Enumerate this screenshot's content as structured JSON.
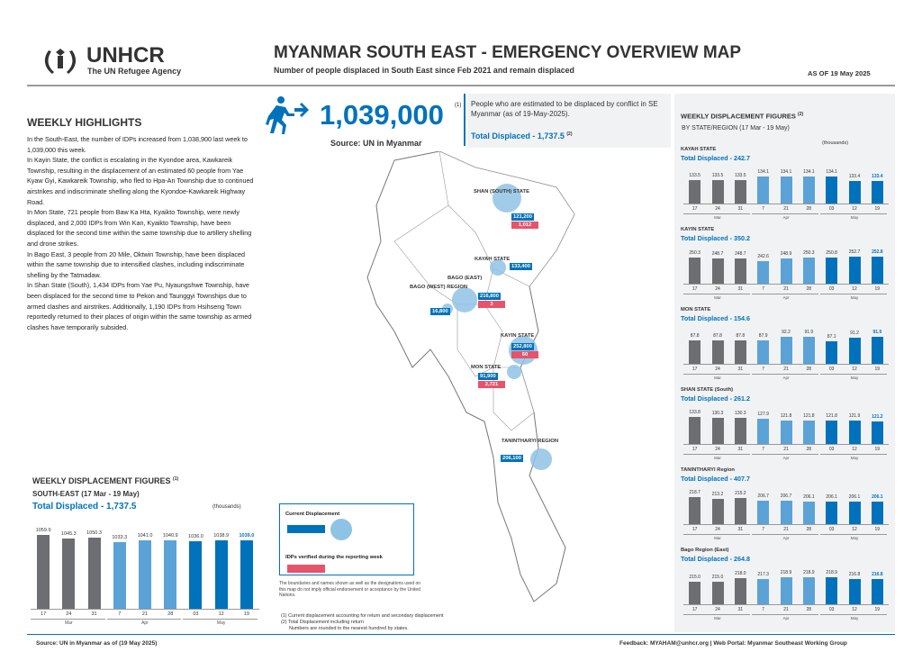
{
  "header": {
    "org": "UNHCR",
    "org_sub": "The UN Refugee Agency",
    "title": "MYANMAR SOUTH EAST - EMERGENCY OVERVIEW MAP",
    "subtitle": "Number of people displaced in South East since Feb 2021 and remain displaced",
    "as_of": "AS OF 19 May 2025"
  },
  "highlights": {
    "heading": "WEEKLY HIGHLIGHTS",
    "paragraphs": [
      "In the South-East, the number of IDPs increased from 1,038,900 last week to 1,039,000 this week.",
      "In Kayin State, the conflict is escalating in the Kyondoe area, Kawkareik Township, resulting in the displacement of an estimated 60 people from Yae Kyaw Gyi, Kawkareik Township, who fled to Hpa-An Township due to continued airstrikes and indiscriminate shelling along the Kyondoe-Kawkareik Highway Road.",
      "In Mon State, 721 people from Baw Ka Hta, Kyaikto Township, were newly displaced, and 2,000 IDPs from Win Kan, Kyaikto Township, have been displaced for the second time within the same township due to artillery shelling and drone strikes.",
      "In Bago East, 3 people from 20 Mile, Oktwin Township, have been displaced within the same township due to intensified clashes, including indiscriminate shelling by the Tatmadaw.",
      "In Shan State (South), 1,434 IDPs from Yae Pu, Nyaungshwe Township, have been displaced for the second time to Pekon and Taunggyi Townships due to armed clashes and airstrikes. Additionally, 1,190 IDPs from Hsihseng Town reportedly returned to their places of origin within the same township as armed clashes have temporarily subsided."
    ]
  },
  "kpi": {
    "value": "1,039,000",
    "sup": "(1)",
    "source": "Source: UN in Myanmar",
    "desc": "People who are estimated to be displaced by conflict in SE Myanmar (as of 19-May-2025).",
    "total": "Total Displaced - 1,737.5",
    "total_sup": "(2)"
  },
  "map": {
    "regions": [
      {
        "name": "SHAN (SOUTH) STATE",
        "current": "121,200",
        "new": "1,012"
      },
      {
        "name": "KAYAH STATE",
        "current": "133,400",
        "new": ""
      },
      {
        "name": "BAGO (EAST)",
        "current": "216,800",
        "new": "3"
      },
      {
        "name": "BAGO (WEST) REGION",
        "current": "16,800",
        "new": ""
      },
      {
        "name": "KAYIN STATE",
        "current": "252,800",
        "new": "60"
      },
      {
        "name": "MON STATE",
        "current": "91,900",
        "new": "2,721"
      },
      {
        "name": "TANINTHARYI REGION",
        "current": "206,100",
        "new": ""
      }
    ],
    "legend_current": "Current Displacement",
    "legend_new": "IDPs verified during the reporting week",
    "disclaimer": "The boundaries and names shown as well as the designations used on this map do not imply official endorsement or acceptance by the United Nations."
  },
  "se_chart": {
    "heading": "WEEKLY DISPLACEMENT FIGURES",
    "heading_sup": "(1)",
    "sub": "SOUTH-EAST (17 Mar - 19 May)",
    "total": "Total Displaced - 1,737.5",
    "units": "(thousands)",
    "chart_data": {
      "type": "bar",
      "categories": [
        "17",
        "24",
        "31",
        "7",
        "21",
        "28",
        "03",
        "12",
        "19"
      ],
      "months": [
        "Mar",
        "Apr",
        "May"
      ],
      "values": [
        1059.9,
        1045.3,
        1050.3,
        1033.3,
        1041.0,
        1040.9,
        1036.0,
        1038.9,
        1039.0
      ],
      "value_labels": [
        "1059.9",
        "1045.3",
        "1050.3",
        "1033.3",
        "1041.0",
        "1040.9",
        "1036.0",
        "1038.9",
        "1039.0"
      ]
    }
  },
  "state_charts": {
    "heading": "WEEKLY DISPLACEMENT FIGURES",
    "heading_sup": "(2)",
    "sub": "BY STATE/REGION (17 Mar - 19 May)",
    "units": "(thousands)",
    "months": [
      "Mar",
      "Apr",
      "May"
    ],
    "categories": [
      "17",
      "24",
      "31",
      "7",
      "21",
      "28",
      "03",
      "12",
      "19"
    ],
    "chart_data": [
      {
        "type": "bar",
        "name": "KAYAH STATE",
        "total": "Total Displaced - 242.7",
        "values": [
          133.5,
          133.5,
          133.5,
          134.1,
          134.1,
          134.1,
          134.1,
          133.4,
          133.4
        ],
        "value_labels": [
          "133.5",
          "133.5",
          "133.5",
          "134.1",
          "134.1",
          "134.1",
          "134.1",
          "133.4",
          "133.4"
        ]
      },
      {
        "type": "bar",
        "name": "KAYIN STATE",
        "total": "Total Displaced - 350.2",
        "values": [
          250.3,
          248.7,
          248.7,
          242.6,
          248.9,
          250.3,
          250.8,
          252.7,
          252.8
        ],
        "value_labels": [
          "250.3",
          "248.7",
          "248.7",
          "242.6",
          "248.9",
          "250.3",
          "250.8",
          "252.7",
          "252.8"
        ]
      },
      {
        "type": "bar",
        "name": "MON STATE",
        "total": "Total Displaced - 154.6",
        "values": [
          87.8,
          87.8,
          87.8,
          87.9,
          92.2,
          91.9,
          87.1,
          91.2,
          91.9
        ],
        "value_labels": [
          "87.8",
          "87.8",
          "87.8",
          "87.9",
          "92.2",
          "91.9",
          "87.1",
          "91.2",
          "91.9"
        ]
      },
      {
        "type": "bar",
        "name": "SHAN STATE (South)",
        "total": "Total Displaced - 261.2",
        "values": [
          133.8,
          130.3,
          130.3,
          127.9,
          121.8,
          121.8,
          121.8,
          121.9,
          121.2
        ],
        "value_labels": [
          "133.8",
          "130.3",
          "130.3",
          "127.9",
          "121.8",
          "121.8",
          "121.8",
          "121.9",
          "121.2"
        ]
      },
      {
        "type": "bar",
        "name": "TANINTHARYI Region",
        "total": "Total Displaced - 407.7",
        "values": [
          218.7,
          213.2,
          215.2,
          206.7,
          206.7,
          206.1,
          206.1,
          206.1,
          206.1
        ],
        "value_labels": [
          "218.7",
          "213.2",
          "215.2",
          "206.7",
          "206.7",
          "206.1",
          "206.1",
          "206.1",
          "206.1"
        ]
      },
      {
        "type": "bar",
        "name": "Bago Region (East)",
        "total": "Total Displaced - 264.8",
        "values": [
          215.0,
          215.0,
          218.0,
          217.3,
          218.9,
          218.9,
          218.9,
          216.8,
          216.8
        ],
        "value_labels": [
          "215.0",
          "215.0",
          "218.0",
          "217.3",
          "218.9",
          "218.9",
          "218.9",
          "216.8",
          "216.8"
        ]
      }
    ]
  },
  "notes": [
    "(1) Current displacement accounting for return and secondary displacement",
    "(2) Total Displacement including return",
    "Numbers are rounded to the nearest hundred by states."
  ],
  "footer": {
    "source": "Source: UN in Myanmar as of (19 May 2025)",
    "feedback": "Feedback: MYAHAM@unhcr.org | Web Portal: Myanmar Southeast Working Group"
  },
  "colors": {
    "blue": "#0072bc",
    "light_blue": "#5ba3d6",
    "gray": "#6d6e71",
    "red": "#e5546a"
  }
}
